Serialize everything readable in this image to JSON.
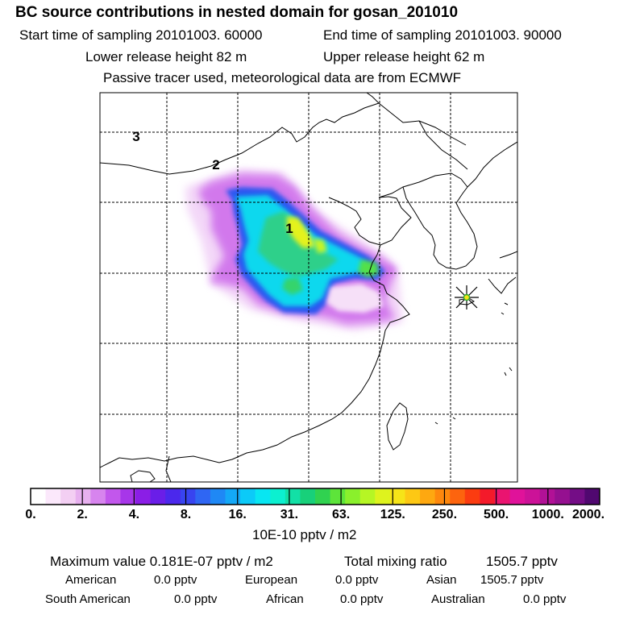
{
  "title": "BC  source contributions in nested domain for gosan_201010",
  "header": {
    "start": "Start time of sampling 20101003. 60000",
    "end": "End time of sampling 20101003. 90000",
    "lower": "Lower release height   82 m",
    "upper": "Upper release height   62 m",
    "note": "Passive tracer used, meteorological data are from ECMWF"
  },
  "map": {
    "domain_labels": [
      "1",
      "2",
      "3"
    ],
    "receptor": "receptor-star-marker"
  },
  "colorbar": {
    "labels": [
      "0.",
      "2.",
      "4.",
      "8.",
      "16.",
      "31.",
      "63.",
      "125.",
      "250.",
      "500.",
      "1000.",
      "2000."
    ],
    "units": "10E-10 pptv / m2",
    "colors": [
      "#ffffff",
      "#fbe8fb",
      "#f3cff3",
      "#e7b0ef",
      "#d784ee",
      "#c257ec",
      "#a736e9",
      "#8b1ee6",
      "#6a1ee8",
      "#4b28ec",
      "#3844f0",
      "#2f66f3",
      "#1f88f5",
      "#14a8f7",
      "#0ccaf8",
      "#08e6f2",
      "#0cf0d0",
      "#12e0a6",
      "#18d07a",
      "#30d250",
      "#5de43a",
      "#8af02c",
      "#b6f624",
      "#def31e",
      "#f6e418",
      "#fdc814",
      "#fea810",
      "#fe880d",
      "#fd640e",
      "#fb3c10",
      "#f41a2a",
      "#ea1470",
      "#e0129a",
      "#cc1298",
      "#b11196",
      "#951090",
      "#740d86",
      "#500870"
    ]
  },
  "stats": {
    "max_label": "Maximum value  0.181E-07 pptv / m2",
    "total_label": "Total mixing ratio",
    "total_value": "1505.7 pptv",
    "american_label": "American",
    "american_value": "0.0 pptv",
    "european_label": "European",
    "european_value": "0.0 pptv",
    "asian_label": "Asian",
    "asian_value": "1505.7 pptv",
    "south_american_label": "South American",
    "south_american_value": "0.0 pptv",
    "african_label": "African",
    "african_value": "0.0 pptv",
    "australian_label": "Australian",
    "australian_value": "0.0 pptv"
  }
}
